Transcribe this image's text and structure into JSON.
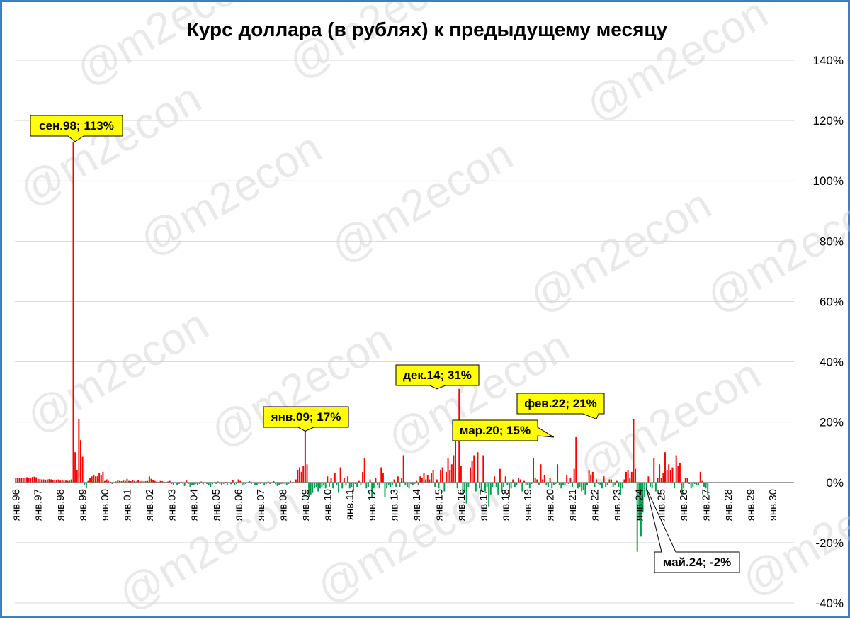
{
  "watermark": "@m2econ",
  "chart_data": {
    "type": "bar",
    "title": "Курс доллара (в рублях) к предыдущему месяцу",
    "xlabel": "",
    "ylabel": "",
    "ylim": [
      -40,
      140
    ],
    "y_ticks": [
      -40,
      -20,
      0,
      20,
      40,
      60,
      80,
      100,
      120,
      140
    ],
    "y_tick_labels": [
      "-40%",
      "-20%",
      "0%",
      "20%",
      "40%",
      "60%",
      "80%",
      "100%",
      "120%",
      "140%"
    ],
    "y_axis_position": "right",
    "grid": true,
    "x_tick_labels": [
      "янв.96",
      "янв.97",
      "янв.98",
      "янв.99",
      "янв.00",
      "янв.01",
      "янв.02",
      "янв.03",
      "янв.04",
      "янв.05",
      "янв.06",
      "янв.07",
      "янв.08",
      "янв.09",
      "янв.10",
      "янв.11",
      "янв.12",
      "янв.13",
      "янв.14",
      "янв.15",
      "янв.16",
      "янв.17",
      "янв.18",
      "янв.19",
      "янв.20",
      "янв.21",
      "янв.22",
      "янв.23",
      "янв.24",
      "янв.25",
      "янв.26",
      "янв.27",
      "янв.28",
      "янв.29",
      "янв.30"
    ],
    "x_start_year": 1996,
    "x_end_year": 2030,
    "colors": {
      "positive": "#ff0000",
      "negative": "#00a050",
      "callout_fill": "#ffff00",
      "frame": "#3f7cc6"
    },
    "values": [
      1.5,
      1.6,
      1.4,
      1.5,
      1.6,
      1.4,
      1.7,
      1.5,
      1.6,
      1.8,
      1.9,
      1.7,
      1.2,
      1.1,
      1.0,
      1.0,
      0.9,
      1.0,
      1.1,
      1.0,
      0.9,
      0.8,
      0.9,
      1.0,
      0.6,
      0.7,
      0.6,
      0.6,
      0.5,
      0.6,
      1.0,
      113.0,
      10.0,
      4.0,
      21.0,
      14.0,
      8.5,
      -1.0,
      -2.0,
      0.5,
      1.5,
      2.0,
      2.5,
      2.0,
      2.0,
      3.0,
      2.5,
      3.5,
      0.5,
      1.0,
      0.5,
      0.2,
      -0.5,
      -0.3,
      0.3,
      0.8,
      0.5,
      0.4,
      0.6,
      0.5,
      1.2,
      0.5,
      0.4,
      0.8,
      0.5,
      0.3,
      0.7,
      0.4,
      0.5,
      0.3,
      0.4,
      0.5,
      2.0,
      1.2,
      0.8,
      0.5,
      0.3,
      0.2,
      0.5,
      0.4,
      0.2,
      0.1,
      0.3,
      0.5,
      -0.5,
      -0.8,
      -0.3,
      -1.0,
      -0.5,
      0.2,
      -0.4,
      -1.2,
      0.6,
      -0.5,
      -1.5,
      -1.0,
      -0.8,
      -0.5,
      -1.0,
      -0.5,
      0.3,
      -0.6,
      -0.2,
      -0.5,
      -0.8,
      -1.5,
      -0.6,
      -0.3,
      -0.5,
      0.3,
      -0.5,
      -1.0,
      -0.5,
      0.2,
      -0.8,
      -0.3,
      -0.6,
      0.8,
      -1.0,
      -0.5,
      1.0,
      0.5,
      -0.8,
      -1.0,
      -0.5,
      -0.2,
      0.4,
      -0.5,
      -0.3,
      -1.0,
      -0.8,
      -0.5,
      -0.5,
      -0.3,
      -1.0,
      -0.5,
      0.3,
      -0.5,
      -0.3,
      0.4,
      -0.6,
      -1.2,
      -0.8,
      -0.5,
      -0.5,
      -0.4,
      -1.0,
      -0.5,
      0.5,
      -0.3,
      -0.2,
      1.0,
      4.0,
      5.0,
      3.5,
      5.5,
      17.0,
      6.0,
      -5.0,
      -4.0,
      -3.5,
      -2.0,
      -1.5,
      -3.0,
      -2.0,
      -1.5,
      -1.0,
      -2.0,
      2.0,
      -1.5,
      1.5,
      -2.0,
      3.0,
      -1.0,
      -3.5,
      5.0,
      -2.0,
      1.5,
      -1.0,
      2.0,
      -2.0,
      -1.5,
      -3.0,
      -0.5,
      -1.5,
      0.5,
      -1.0,
      3.5,
      8.0,
      -2.0,
      -1.5,
      1.0,
      -5.0,
      -2.0,
      1.5,
      -1.0,
      -2.0,
      5.0,
      3.0,
      -5.0,
      -2.0,
      -1.0,
      -1.5,
      -1.0,
      1.0,
      -1.5,
      2.0,
      -1.5,
      1.5,
      9.0,
      -1.0,
      -1.5,
      -2.0,
      -0.5,
      -1.0,
      -0.5,
      0.5,
      -1.0,
      2.0,
      1.5,
      3.0,
      1.0,
      2.5,
      1.0,
      3.0,
      4.0,
      -1.5,
      1.0,
      -2.0,
      4.0,
      5.0,
      -3.0,
      3.5,
      8.0,
      4.0,
      6.0,
      9.0,
      14.0,
      -2.0,
      31.0,
      5.5,
      -4.0,
      -3.0,
      -7.0,
      -1.5,
      5.0,
      7.0,
      9.0,
      -3.0,
      10.0,
      -2.0,
      -3.0,
      9.0,
      -3.0,
      -1.5,
      -8.0,
      -4.0,
      -1.5,
      2.0,
      -1.5,
      -4.0,
      4.5,
      -3.0,
      -1.5,
      2.0,
      -1.0,
      -5.0,
      -2.0,
      1.0,
      -1.5,
      -1.0,
      1.5,
      1.0,
      -3.0,
      0.5,
      -1.0,
      -1.0,
      -2.0,
      -0.5,
      8.0,
      1.5,
      1.0,
      -1.0,
      6.0,
      1.0,
      2.5,
      -1.0,
      -1.5,
      1.5,
      -2.0,
      -1.0,
      -0.5,
      6.0,
      -1.0,
      -2.0,
      -1.0,
      -1.0,
      2.5,
      -0.5,
      1.5,
      -1.5,
      4.5,
      15.0,
      -2.0,
      -1.5,
      -3.0,
      -2.5,
      -4.0,
      -1.0,
      4.0,
      2.5,
      3.5,
      -1.5,
      1.0,
      -0.5,
      -1.0,
      -2.0,
      2.0,
      -1.5,
      -1.0,
      1.0,
      1.0,
      -1.5,
      -1.0,
      0.5,
      -1.5,
      -4.0,
      -2.0,
      1.0,
      3.5,
      4.0,
      1.5,
      3.5,
      21.0,
      4.5,
      -23.0,
      -12.0,
      -18.0,
      -10.0,
      -5.0,
      -3.0,
      2.0,
      -1.5,
      -2.0,
      8.0,
      -3.0,
      1.5,
      6.0,
      1.5,
      3.0,
      10.0,
      4.0,
      6.0,
      4.0,
      5.0,
      -2.0,
      9.0,
      5.5,
      6.5,
      -4.0,
      -2.0,
      1.5,
      1.5,
      -0.5,
      -2.0,
      -1.5,
      -0.5,
      -1.0,
      -1.0,
      3.5,
      0.5,
      -1.5,
      -2.0,
      -4.0
    ],
    "annotations": [
      {
        "label": "сен.98; 113%",
        "value": 113
      },
      {
        "label": "янв.09; 17%",
        "value": 17
      },
      {
        "label": "дек.14; 31%",
        "value": 31
      },
      {
        "label": "мар.20; 15%",
        "value": 15
      },
      {
        "label": "фев.22; 21%",
        "value": 21
      },
      {
        "label": "май.24; -2%",
        "value": -2
      }
    ]
  }
}
